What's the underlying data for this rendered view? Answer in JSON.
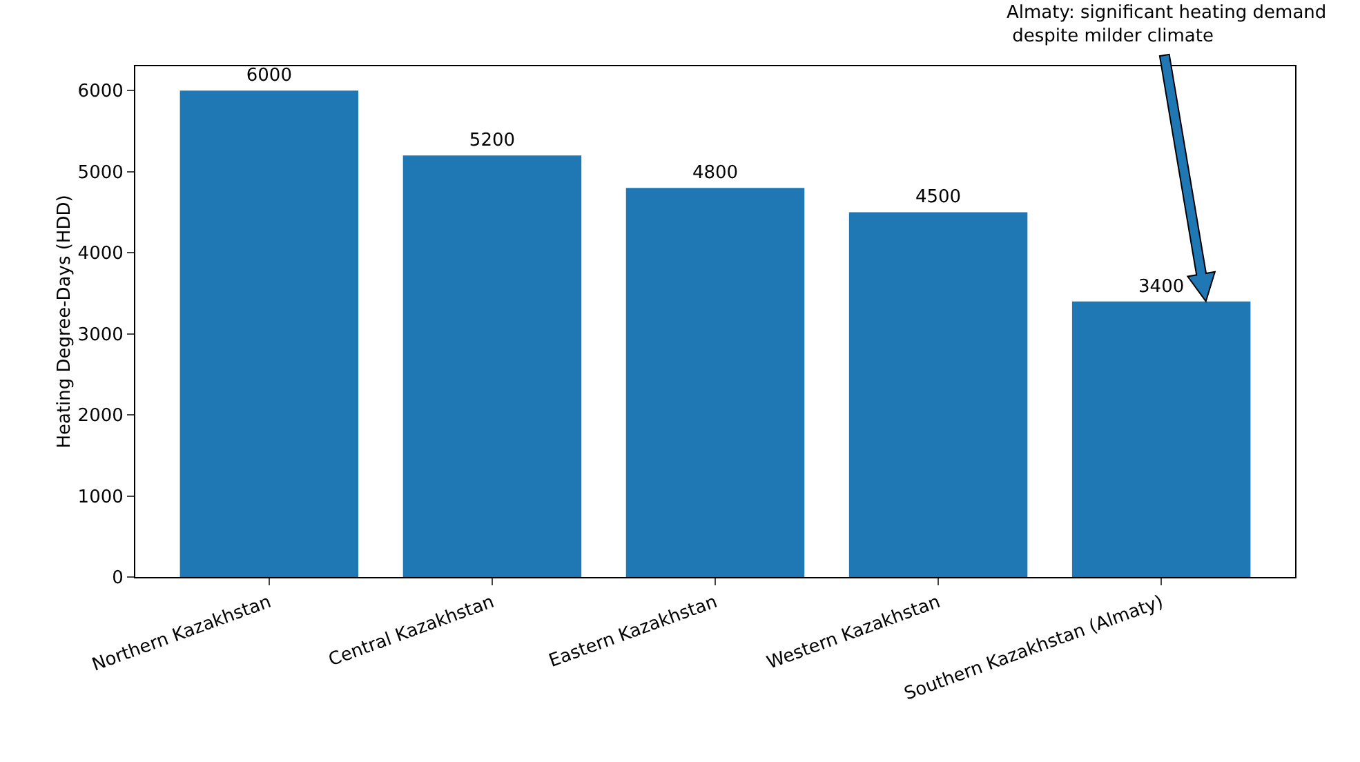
{
  "chart_data": {
    "type": "bar",
    "ylabel": "Heating Degree-Days (HDD)",
    "categories": [
      "Northern Kazakhstan",
      "Central Kazakhstan",
      "Eastern Kazakhstan",
      "Western Kazakhstan",
      "Southern Kazakhstan (Almaty)"
    ],
    "values": [
      6000,
      5200,
      4800,
      4500,
      3400
    ],
    "color": "#1f77b4",
    "ylim": [
      0,
      6300
    ],
    "yticks": [
      0,
      1000,
      2000,
      3000,
      4000,
      5000,
      6000
    ],
    "grid": false,
    "data_labels": true,
    "annotations": [
      "Almaty: significant heating demand\n despite milder climate"
    ]
  }
}
